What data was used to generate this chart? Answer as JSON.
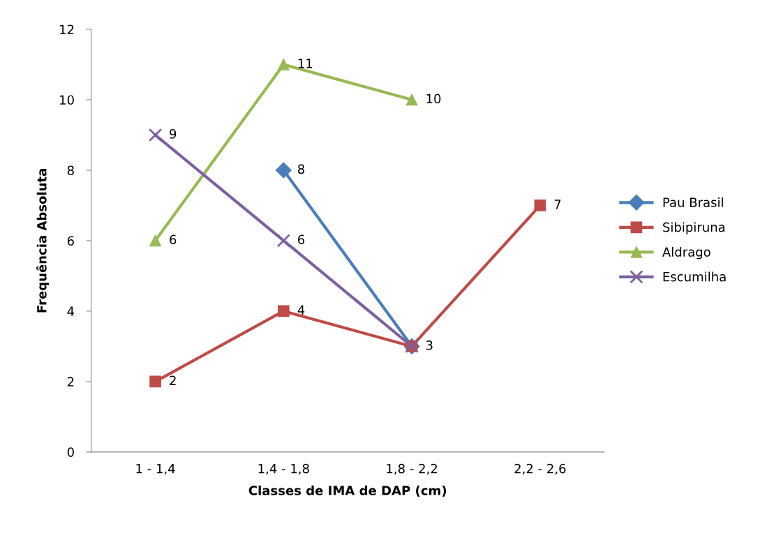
{
  "chart_data": {
    "type": "line",
    "xlabel": "Classes de IMA de DAP (cm)",
    "ylabel": "Frequência Absoluta",
    "categories": [
      "1 - 1,4",
      "1,4 - 1,8",
      "1,8 - 2,2",
      "2,2 - 2,6"
    ],
    "ylim": [
      0,
      12
    ],
    "yticks": [
      0,
      2,
      4,
      6,
      8,
      10,
      12
    ],
    "grid": false,
    "legend": "right",
    "series": [
      {
        "name": "Pau Brasil",
        "color": "#4a7ebb",
        "marker": "diamond",
        "values": [
          null,
          8,
          3,
          null
        ],
        "value_labels": [
          null,
          "8",
          "3",
          null
        ]
      },
      {
        "name": "Sibipiruna",
        "color": "#be4b48",
        "marker": "square",
        "values": [
          2,
          4,
          3,
          7
        ],
        "value_labels": [
          "2",
          "4",
          null,
          "7"
        ]
      },
      {
        "name": "Aldrago",
        "color": "#98b954",
        "marker": "triangle",
        "values": [
          6,
          11,
          10,
          null
        ],
        "value_labels": [
          "6",
          "11",
          "10",
          null
        ]
      },
      {
        "name": "Escumilha",
        "color": "#7d60a0",
        "marker": "cross",
        "values": [
          9,
          6,
          3,
          null
        ],
        "value_labels": [
          "9",
          "6",
          null,
          null
        ]
      }
    ]
  }
}
